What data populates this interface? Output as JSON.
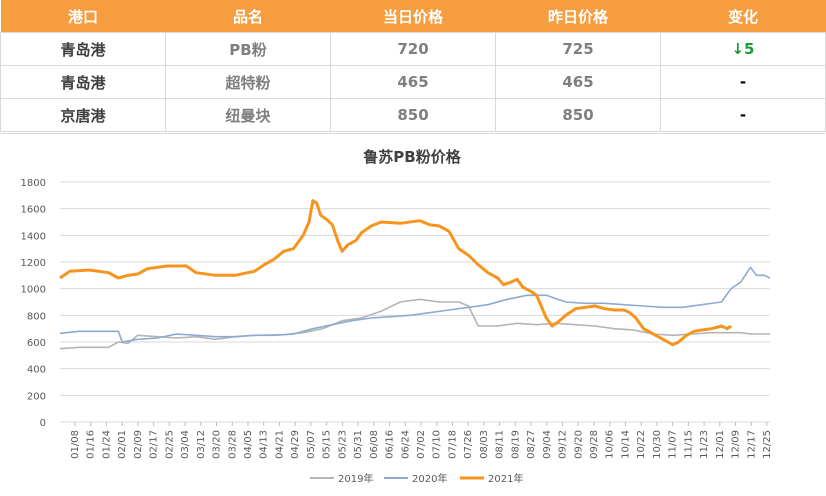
{
  "table": {
    "headers": [
      "港口",
      "品名",
      "当日价格",
      "昨日价格",
      "变化"
    ],
    "rows": [
      {
        "port": "青岛港",
        "product": "PB粉",
        "today": "720",
        "yesterday": "725",
        "change": "↓5"
      },
      {
        "port": "青岛港",
        "product": "超特粉",
        "today": "465",
        "yesterday": "465",
        "change": "-"
      },
      {
        "port": "京唐港",
        "product": "纽曼块",
        "today": "850",
        "yesterday": "850",
        "change": "-"
      }
    ]
  },
  "colors": {
    "header_bg": "#f59d3f",
    "s2019": "#b4b4b4",
    "s2020": "#8eaad2",
    "s2021": "#f7941d",
    "down": "#1f9a3a"
  },
  "chart_data": {
    "type": "line",
    "title": "鲁苏PB粉价格",
    "ylim": [
      0,
      1800
    ],
    "yticks": [
      0,
      200,
      400,
      600,
      800,
      1000,
      1200,
      1400,
      1600,
      1800
    ],
    "xlim_days": [
      0,
      365
    ],
    "x_labels": [
      "01/08",
      "01/16",
      "01/24",
      "02/01",
      "02/09",
      "02/17",
      "02/25",
      "03/04",
      "03/12",
      "03/20",
      "03/28",
      "04/05",
      "04/13",
      "04/21",
      "04/29",
      "05/07",
      "05/15",
      "05/23",
      "05/31",
      "06/08",
      "06/16",
      "06/24",
      "07/02",
      "07/10",
      "07/18",
      "07/26",
      "08/03",
      "08/11",
      "08/19",
      "08/27",
      "09/04",
      "09/12",
      "09/20",
      "09/28",
      "10/06",
      "10/14",
      "10/22",
      "10/30",
      "11/07",
      "11/15",
      "11/23",
      "12/01",
      "12/09",
      "12/17",
      "12/25"
    ],
    "grid": true,
    "legend_position": "bottom",
    "series": [
      {
        "name": "2019年",
        "color": "#b4b4b4",
        "points": [
          [
            0,
            550
          ],
          [
            10,
            560
          ],
          [
            25,
            560
          ],
          [
            30,
            600
          ],
          [
            35,
            590
          ],
          [
            40,
            650
          ],
          [
            50,
            640
          ],
          [
            60,
            630
          ],
          [
            70,
            640
          ],
          [
            80,
            620
          ],
          [
            90,
            640
          ],
          [
            100,
            650
          ],
          [
            115,
            655
          ],
          [
            125,
            670
          ],
          [
            135,
            700
          ],
          [
            145,
            760
          ],
          [
            155,
            780
          ],
          [
            165,
            830
          ],
          [
            175,
            900
          ],
          [
            185,
            920
          ],
          [
            195,
            900
          ],
          [
            205,
            900
          ],
          [
            210,
            870
          ],
          [
            215,
            720
          ],
          [
            225,
            720
          ],
          [
            235,
            740
          ],
          [
            245,
            730
          ],
          [
            255,
            740
          ],
          [
            265,
            730
          ],
          [
            275,
            720
          ],
          [
            285,
            700
          ],
          [
            295,
            690
          ],
          [
            305,
            660
          ],
          [
            315,
            650
          ],
          [
            325,
            660
          ],
          [
            335,
            670
          ],
          [
            350,
            670
          ],
          [
            355,
            660
          ],
          [
            365,
            660
          ]
        ]
      },
      {
        "name": "2020年",
        "color": "#8eaad2",
        "points": [
          [
            0,
            665
          ],
          [
            10,
            680
          ],
          [
            25,
            680
          ],
          [
            30,
            680
          ],
          [
            32,
            600
          ],
          [
            40,
            620
          ],
          [
            50,
            630
          ],
          [
            60,
            660
          ],
          [
            70,
            650
          ],
          [
            80,
            640
          ],
          [
            90,
            640
          ],
          [
            100,
            650
          ],
          [
            110,
            650
          ],
          [
            120,
            660
          ],
          [
            130,
            700
          ],
          [
            140,
            730
          ],
          [
            150,
            760
          ],
          [
            160,
            780
          ],
          [
            170,
            790
          ],
          [
            180,
            800
          ],
          [
            190,
            820
          ],
          [
            200,
            840
          ],
          [
            210,
            860
          ],
          [
            220,
            880
          ],
          [
            230,
            920
          ],
          [
            240,
            950
          ],
          [
            250,
            950
          ],
          [
            260,
            900
          ],
          [
            270,
            890
          ],
          [
            280,
            890
          ],
          [
            290,
            880
          ],
          [
            300,
            870
          ],
          [
            310,
            860
          ],
          [
            320,
            860
          ],
          [
            330,
            880
          ],
          [
            340,
            900
          ],
          [
            345,
            1000
          ],
          [
            350,
            1050
          ],
          [
            355,
            1160
          ],
          [
            358,
            1100
          ],
          [
            362,
            1100
          ],
          [
            365,
            1080
          ]
        ]
      },
      {
        "name": "2021年",
        "color": "#f7941d",
        "points": [
          [
            0,
            1080
          ],
          [
            5,
            1130
          ],
          [
            15,
            1140
          ],
          [
            25,
            1120
          ],
          [
            30,
            1080
          ],
          [
            35,
            1100
          ],
          [
            40,
            1110
          ],
          [
            45,
            1150
          ],
          [
            55,
            1170
          ],
          [
            65,
            1170
          ],
          [
            70,
            1120
          ],
          [
            80,
            1100
          ],
          [
            90,
            1100
          ],
          [
            100,
            1130
          ],
          [
            105,
            1180
          ],
          [
            110,
            1220
          ],
          [
            115,
            1280
          ],
          [
            120,
            1300
          ],
          [
            125,
            1400
          ],
          [
            128,
            1500
          ],
          [
            130,
            1660
          ],
          [
            132,
            1640
          ],
          [
            134,
            1550
          ],
          [
            137,
            1520
          ],
          [
            140,
            1480
          ],
          [
            143,
            1350
          ],
          [
            145,
            1280
          ],
          [
            148,
            1330
          ],
          [
            152,
            1360
          ],
          [
            155,
            1420
          ],
          [
            160,
            1470
          ],
          [
            165,
            1500
          ],
          [
            175,
            1490
          ],
          [
            185,
            1510
          ],
          [
            190,
            1480
          ],
          [
            195,
            1470
          ],
          [
            200,
            1430
          ],
          [
            205,
            1300
          ],
          [
            210,
            1250
          ],
          [
            215,
            1180
          ],
          [
            220,
            1120
          ],
          [
            225,
            1080
          ],
          [
            228,
            1030
          ],
          [
            232,
            1050
          ],
          [
            235,
            1070
          ],
          [
            238,
            1010
          ],
          [
            242,
            980
          ],
          [
            245,
            950
          ],
          [
            250,
            780
          ],
          [
            253,
            720
          ],
          [
            256,
            750
          ],
          [
            260,
            800
          ],
          [
            265,
            850
          ],
          [
            270,
            860
          ],
          [
            275,
            870
          ],
          [
            280,
            850
          ],
          [
            285,
            840
          ],
          [
            290,
            840
          ],
          [
            293,
            820
          ],
          [
            296,
            780
          ],
          [
            300,
            700
          ],
          [
            305,
            660
          ],
          [
            310,
            620
          ],
          [
            315,
            580
          ],
          [
            318,
            600
          ],
          [
            322,
            650
          ],
          [
            326,
            680
          ],
          [
            330,
            690
          ],
          [
            335,
            700
          ],
          [
            340,
            720
          ],
          [
            343,
            700
          ],
          [
            345,
            720
          ]
        ]
      }
    ]
  }
}
